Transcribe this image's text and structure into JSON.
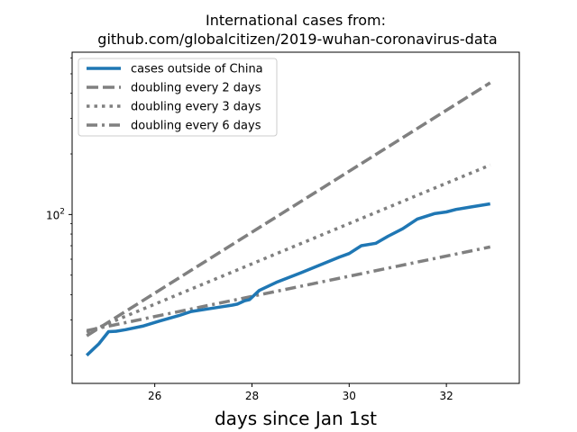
{
  "chart_data": {
    "type": "line",
    "title_line1": "International cases from:",
    "title_line2": "github.com/globalcitizen/2019-wuhan-coronavirus-data",
    "xlabel": "days since Jan 1st",
    "ylabel": "",
    "yscale": "log",
    "xlim": [
      24.3,
      33.5
    ],
    "ylim": [
      14.5,
      640
    ],
    "x_ticks": [
      26,
      28,
      30,
      32
    ],
    "x_tick_labels": [
      "26",
      "28",
      "30",
      "32"
    ],
    "y_ticks": [
      100
    ],
    "y_tick_base": "10",
    "y_tick_exp": "2",
    "grid": false,
    "legend_position": "upper left",
    "series": [
      {
        "name": "cases outside of China",
        "color": "#1f77b4",
        "style": "solid",
        "x": [
          24.6,
          24.85,
          25.05,
          25.2,
          25.4,
          25.75,
          26.1,
          26.5,
          26.75,
          27.1,
          27.4,
          27.6,
          27.7,
          27.85,
          27.95,
          28.15,
          28.5,
          29.0,
          29.5,
          29.8,
          30.0,
          30.25,
          30.55,
          30.8,
          31.1,
          31.4,
          31.75,
          32.0,
          32.2,
          32.5,
          32.9
        ],
        "y": [
          20,
          22.8,
          26.2,
          26.3,
          26.8,
          27.9,
          29.6,
          31.5,
          33,
          34,
          34.9,
          35.5,
          35.9,
          37.3,
          37.8,
          42,
          46,
          51.3,
          57.4,
          61.5,
          64,
          70,
          72,
          78,
          85,
          95,
          101,
          103,
          106,
          109,
          113
        ]
      },
      {
        "name": "doubling every 2 days",
        "color": "#808080",
        "style": "dashed",
        "x": [
          24.6,
          32.9
        ],
        "y": [
          25,
          451
        ]
      },
      {
        "name": "doubling every 3 days",
        "color": "#808080",
        "style": "dotted",
        "x": [
          24.6,
          32.9
        ],
        "y": [
          26,
          176
        ]
      },
      {
        "name": "doubling every 6 days",
        "color": "#808080",
        "style": "dashdot",
        "x": [
          24.6,
          32.9
        ],
        "y": [
          26.5,
          69
        ]
      }
    ]
  }
}
